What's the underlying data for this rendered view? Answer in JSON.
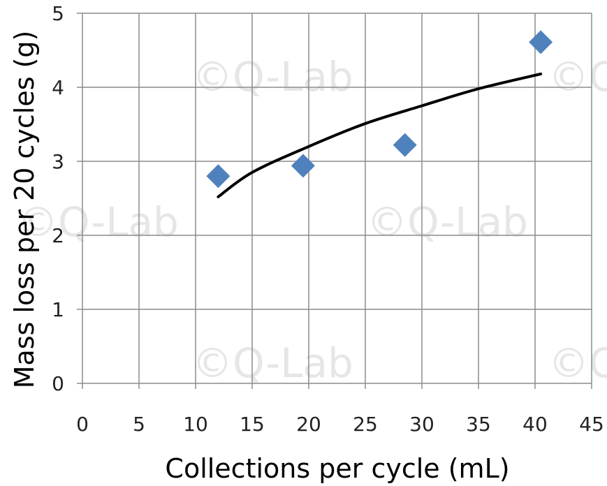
{
  "chart_data": {
    "type": "scatter",
    "xlabel": "Collections per cycle (mL)",
    "ylabel": "Mass loss per 20 cycles (g)",
    "xlim": [
      0,
      45
    ],
    "ylim": [
      0,
      5
    ],
    "x_ticks": [
      0,
      5,
      10,
      15,
      20,
      25,
      30,
      35,
      40,
      45
    ],
    "y_ticks": [
      0,
      1,
      2,
      3,
      4,
      5
    ],
    "grid": true,
    "series": [
      {
        "points": [
          {
            "x": 12,
            "y": 2.8
          },
          {
            "x": 19.5,
            "y": 2.94
          },
          {
            "x": 28.5,
            "y": 3.22
          },
          {
            "x": 40.5,
            "y": 4.61
          }
        ],
        "marker": "diamond",
        "color": "#4f81bd"
      }
    ],
    "trendline": {
      "type": "logarithmic",
      "color": "#000000",
      "points": [
        {
          "x": 12,
          "y": 2.52
        },
        {
          "x": 15,
          "y": 2.85
        },
        {
          "x": 20,
          "y": 3.2
        },
        {
          "x": 25,
          "y": 3.51
        },
        {
          "x": 30,
          "y": 3.75
        },
        {
          "x": 35,
          "y": 3.98
        },
        {
          "x": 40.5,
          "y": 4.18
        }
      ]
    }
  },
  "watermark": "©Q-Lab"
}
